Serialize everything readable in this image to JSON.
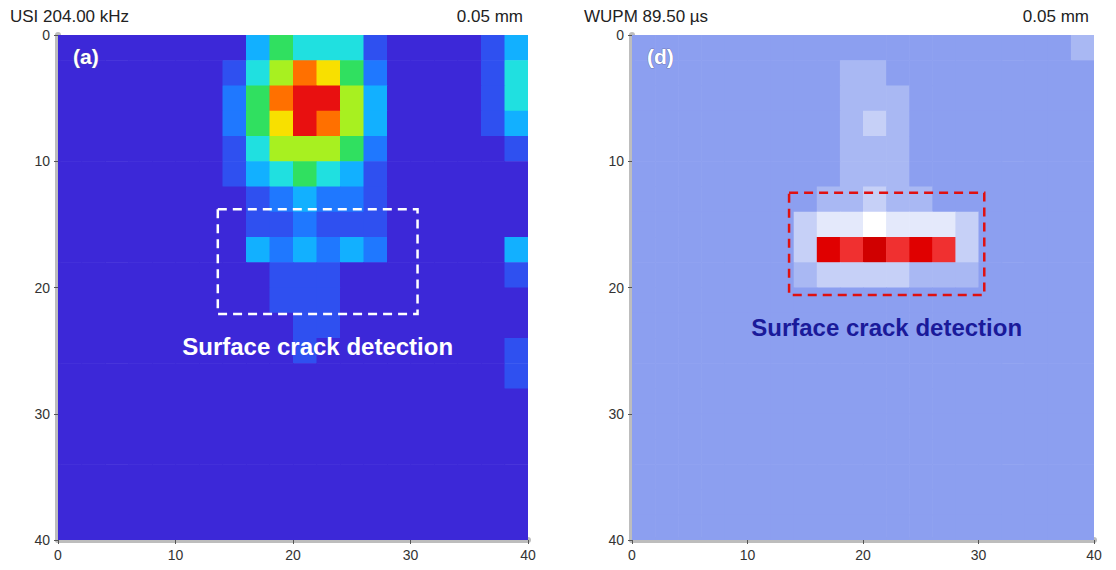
{
  "chart_data": [
    {
      "type": "heatmap",
      "title": "USI 204.00 kHz",
      "subtitle": "0.05 mm",
      "panel_label": "(a)",
      "xlim": [
        0,
        40
      ],
      "ylim": [
        40,
        0
      ],
      "xticks": [
        0,
        10,
        20,
        30,
        40
      ],
      "yticks": [
        0,
        10,
        20,
        30,
        40
      ],
      "x": [
        1,
        3,
        5,
        7,
        9,
        11,
        13,
        15,
        17,
        19,
        21,
        23,
        25,
        27,
        29,
        31,
        33,
        35,
        37,
        39
      ],
      "y": [
        1,
        3,
        5,
        7,
        9,
        11,
        13,
        15,
        17,
        19,
        21,
        23,
        25,
        27,
        29,
        31,
        33,
        35,
        37,
        39
      ],
      "color_range": [
        0,
        9
      ],
      "cells": [
        [
          0,
          0,
          0,
          0,
          0,
          0,
          0,
          0,
          3,
          5,
          4,
          4,
          4,
          1,
          0,
          0,
          0,
          0,
          1,
          3
        ],
        [
          0,
          0,
          0,
          0,
          0,
          0,
          0,
          1,
          4,
          6,
          8,
          7,
          5,
          2,
          0,
          0,
          0,
          0,
          1,
          4
        ],
        [
          0,
          0,
          0,
          0,
          0,
          0,
          0,
          2,
          5,
          8,
          9,
          9,
          6,
          3,
          0,
          0,
          0,
          0,
          1,
          4
        ],
        [
          0,
          0,
          0,
          0,
          0,
          0,
          0,
          2,
          5,
          7,
          9,
          8,
          6,
          3,
          0,
          0,
          0,
          0,
          1,
          3
        ],
        [
          0,
          0,
          0,
          0,
          0,
          0,
          0,
          1,
          4,
          6,
          6,
          6,
          5,
          2,
          0,
          0,
          0,
          0,
          0,
          1
        ],
        [
          0,
          0,
          0,
          0,
          0,
          0,
          0,
          1,
          3,
          4,
          5,
          4,
          3,
          1,
          0,
          0,
          0,
          0,
          0,
          0
        ],
        [
          0,
          0,
          0,
          0,
          0,
          0,
          0,
          0,
          1,
          2,
          3,
          2,
          2,
          1,
          0,
          0,
          0,
          0,
          0,
          0
        ],
        [
          0,
          0,
          0,
          0,
          0,
          0,
          0,
          0,
          1,
          1,
          2,
          1,
          1,
          1,
          0,
          0,
          0,
          0,
          0,
          0
        ],
        [
          0,
          0,
          0,
          0,
          0,
          0,
          0,
          0,
          3,
          2,
          3,
          2,
          3,
          2,
          0,
          0,
          0,
          0,
          0,
          3
        ],
        [
          0,
          0,
          0,
          0,
          0,
          0,
          0,
          0,
          0,
          1,
          1,
          1,
          0,
          0,
          0,
          0,
          0,
          0,
          0,
          1
        ],
        [
          0,
          0,
          0,
          0,
          0,
          0,
          0,
          0,
          0,
          1,
          1,
          1,
          0,
          0,
          0,
          0,
          0,
          0,
          0,
          0
        ],
        [
          0,
          0,
          0,
          0,
          0,
          0,
          0,
          0,
          0,
          0,
          1,
          1,
          0,
          0,
          0,
          0,
          0,
          0,
          0,
          0
        ],
        [
          0,
          0,
          0,
          0,
          0,
          0,
          0,
          0,
          0,
          0,
          1,
          0,
          0,
          0,
          0,
          0,
          0,
          0,
          0,
          1
        ],
        [
          0,
          0,
          0,
          0,
          0,
          0,
          0,
          0,
          0,
          0,
          0,
          0,
          0,
          0,
          0,
          0,
          0,
          0,
          0,
          1
        ],
        [
          0,
          0,
          0,
          0,
          0,
          0,
          0,
          0,
          0,
          0,
          0,
          0,
          0,
          0,
          0,
          0,
          0,
          0,
          0,
          0
        ],
        [
          0,
          0,
          0,
          0,
          0,
          0,
          0,
          0,
          0,
          0,
          0,
          0,
          0,
          0,
          0,
          0,
          0,
          0,
          0,
          0
        ],
        [
          0,
          0,
          0,
          0,
          0,
          0,
          0,
          0,
          0,
          0,
          0,
          0,
          0,
          0,
          0,
          0,
          0,
          0,
          0,
          0
        ],
        [
          0,
          0,
          0,
          0,
          0,
          0,
          0,
          0,
          0,
          0,
          0,
          0,
          0,
          0,
          0,
          0,
          0,
          0,
          0,
          0
        ],
        [
          0,
          0,
          0,
          0,
          0,
          0,
          0,
          0,
          0,
          0,
          0,
          0,
          0,
          0,
          0,
          0,
          0,
          0,
          0,
          0
        ],
        [
          0,
          0,
          0,
          0,
          0,
          0,
          0,
          0,
          0,
          0,
          0,
          0,
          0,
          0,
          0,
          0,
          0,
          0,
          0,
          0
        ]
      ],
      "annotations": [
        {
          "text": "Surface crack detection",
          "box": [
            13.6,
            13.8,
            30.6,
            22.1
          ],
          "color": "#ffffff"
        }
      ]
    },
    {
      "type": "heatmap",
      "title": "WUPM 89.50 µs",
      "subtitle": "0.05 mm",
      "panel_label": "(d)",
      "xlim": [
        0,
        40
      ],
      "ylim": [
        40,
        0
      ],
      "xticks": [
        0,
        10,
        20,
        30,
        40
      ],
      "yticks": [
        0,
        10,
        20,
        30,
        40
      ],
      "x": [
        1,
        3,
        5,
        7,
        9,
        11,
        13,
        15,
        17,
        19,
        21,
        23,
        25,
        27,
        29,
        31,
        33,
        35,
        37,
        39
      ],
      "y": [
        1,
        3,
        5,
        7,
        9,
        11,
        13,
        15,
        17,
        19,
        21,
        23,
        25,
        27,
        29,
        31,
        33,
        35,
        37,
        39
      ],
      "color_range": [
        0,
        9
      ],
      "cells": [
        [
          0,
          0,
          0,
          0,
          0,
          0,
          0,
          0,
          0,
          0,
          0,
          0,
          0,
          0,
          0,
          0,
          0,
          0,
          0,
          1
        ],
        [
          0,
          0,
          0,
          0,
          0,
          0,
          0,
          0,
          0,
          1,
          1,
          0,
          0,
          0,
          0,
          0,
          0,
          0,
          0,
          0
        ],
        [
          0,
          0,
          0,
          0,
          0,
          0,
          0,
          0,
          0,
          1,
          1,
          1,
          0,
          0,
          0,
          0,
          0,
          0,
          0,
          0
        ],
        [
          0,
          0,
          0,
          0,
          0,
          0,
          0,
          0,
          0,
          1,
          2,
          1,
          0,
          0,
          0,
          0,
          0,
          0,
          0,
          0
        ],
        [
          0,
          0,
          0,
          0,
          0,
          0,
          0,
          0,
          0,
          1,
          1,
          1,
          0,
          0,
          0,
          0,
          0,
          0,
          0,
          0
        ],
        [
          0,
          0,
          0,
          0,
          0,
          0,
          0,
          0,
          0,
          1,
          1,
          1,
          0,
          0,
          0,
          0,
          0,
          0,
          0,
          0
        ],
        [
          0,
          0,
          0,
          0,
          0,
          0,
          0,
          0,
          1,
          1,
          2,
          1,
          1,
          0,
          0,
          0,
          0,
          0,
          0,
          0
        ],
        [
          0,
          0,
          0,
          0,
          0,
          0,
          0,
          2,
          3,
          3,
          4,
          3,
          3,
          3,
          2,
          0,
          0,
          0,
          0,
          0
        ],
        [
          0,
          0,
          0,
          0,
          0,
          0,
          0,
          2,
          8,
          7,
          9,
          7,
          8,
          7,
          2,
          0,
          0,
          0,
          0,
          0
        ],
        [
          0,
          0,
          0,
          0,
          0,
          0,
          0,
          1,
          2,
          2,
          2,
          2,
          1,
          1,
          1,
          0,
          0,
          0,
          0,
          0
        ],
        [
          0,
          0,
          0,
          0,
          0,
          0,
          0,
          0,
          0,
          0,
          0,
          0,
          0,
          0,
          0,
          0,
          0,
          0,
          0,
          0
        ],
        [
          0,
          0,
          0,
          0,
          0,
          0,
          0,
          0,
          0,
          0,
          0,
          0,
          0,
          0,
          0,
          0,
          0,
          0,
          0,
          0
        ],
        [
          0,
          0,
          0,
          0,
          0,
          0,
          0,
          0,
          0,
          0,
          0,
          0,
          0,
          0,
          0,
          0,
          0,
          0,
          0,
          0
        ],
        [
          0,
          0,
          0,
          0,
          0,
          0,
          0,
          0,
          0,
          0,
          0,
          0,
          0,
          0,
          0,
          0,
          0,
          0,
          0,
          0
        ],
        [
          0,
          0,
          0,
          0,
          0,
          0,
          0,
          0,
          0,
          0,
          0,
          0,
          0,
          0,
          0,
          0,
          0,
          0,
          0,
          0
        ],
        [
          0,
          0,
          0,
          0,
          0,
          0,
          0,
          0,
          0,
          0,
          0,
          0,
          0,
          0,
          0,
          0,
          0,
          0,
          0,
          0
        ],
        [
          0,
          0,
          0,
          0,
          0,
          0,
          0,
          0,
          0,
          0,
          0,
          0,
          0,
          0,
          0,
          0,
          0,
          0,
          0,
          0
        ],
        [
          0,
          0,
          0,
          0,
          0,
          0,
          0,
          0,
          0,
          0,
          0,
          0,
          0,
          0,
          0,
          0,
          0,
          0,
          0,
          0
        ],
        [
          0,
          0,
          0,
          0,
          0,
          0,
          0,
          0,
          0,
          0,
          0,
          0,
          0,
          0,
          0,
          0,
          0,
          0,
          0,
          0
        ],
        [
          0,
          0,
          0,
          0,
          0,
          0,
          0,
          0,
          0,
          0,
          0,
          0,
          0,
          0,
          0,
          0,
          0,
          0,
          0,
          0
        ]
      ],
      "annotations": [
        {
          "text": "Surface crack detection",
          "box": [
            13.6,
            12.5,
            30.5,
            20.6
          ],
          "color": "#e01010"
        }
      ]
    }
  ]
}
